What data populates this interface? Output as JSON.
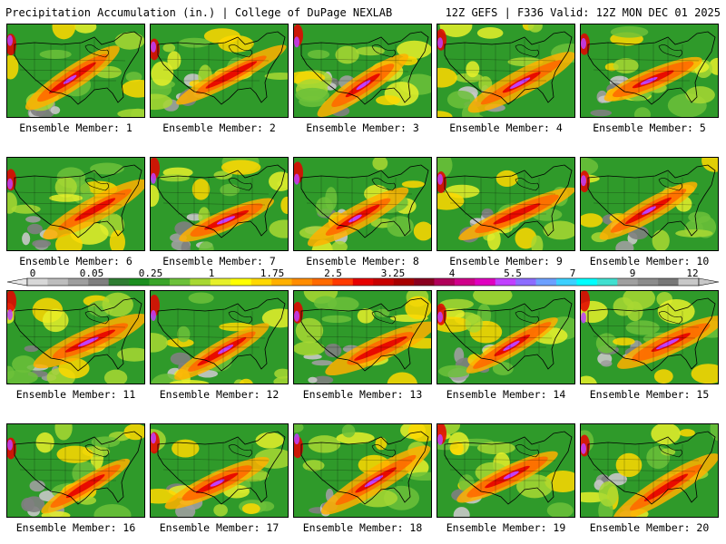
{
  "header": {
    "title": "Precipitation Accumulation (in.) | College of DuPage NEXLAB",
    "run_info": "12Z GEFS | F336 Valid: 12Z MON DEC 01 2025"
  },
  "colorbar": {
    "tick_labels": [
      "0",
      "0.05",
      "0.25",
      "1",
      "1.75",
      "2.5",
      "3.25",
      "4",
      "5.5",
      "7",
      "9",
      "12"
    ],
    "colors": [
      "#d8d8d8",
      "#bdbdbd",
      "#9e9e9e",
      "#7f7f7f",
      "#2e7d32",
      "#1b8e20",
      "#3aa52a",
      "#6cc13a",
      "#a8d832",
      "#e6f02a",
      "#ffff00",
      "#ffd800",
      "#ffb000",
      "#ff8c00",
      "#ff6a00",
      "#ff3a00",
      "#e60000",
      "#c80000",
      "#a80000",
      "#8a0020",
      "#b0005a",
      "#d0008a",
      "#e000c0",
      "#c040ff",
      "#8c6cff",
      "#6ca0ff",
      "#3cd0ff",
      "#00ffff",
      "#40e0d0",
      "#a0a0a0",
      "#8c8c8c",
      "#787878",
      "#c8c8c8"
    ]
  },
  "panels": [
    {
      "label": "Ensemble Member: 1"
    },
    {
      "label": "Ensemble Member: 2"
    },
    {
      "label": "Ensemble Member: 3"
    },
    {
      "label": "Ensemble Member: 4"
    },
    {
      "label": "Ensemble Member: 5"
    },
    {
      "label": "Ensemble Member: 6"
    },
    {
      "label": "Ensemble Member: 7"
    },
    {
      "label": "Ensemble Member: 8"
    },
    {
      "label": "Ensemble Member: 9"
    },
    {
      "label": "Ensemble Member: 10"
    },
    {
      "label": "Ensemble Member: 11"
    },
    {
      "label": "Ensemble Member: 12"
    },
    {
      "label": "Ensemble Member: 13"
    },
    {
      "label": "Ensemble Member: 14"
    },
    {
      "label": "Ensemble Member: 15"
    },
    {
      "label": "Ensemble Member: 16"
    },
    {
      "label": "Ensemble Member: 17"
    },
    {
      "label": "Ensemble Member: 18"
    },
    {
      "label": "Ensemble Member: 19"
    },
    {
      "label": "Ensemble Member: 20"
    }
  ]
}
